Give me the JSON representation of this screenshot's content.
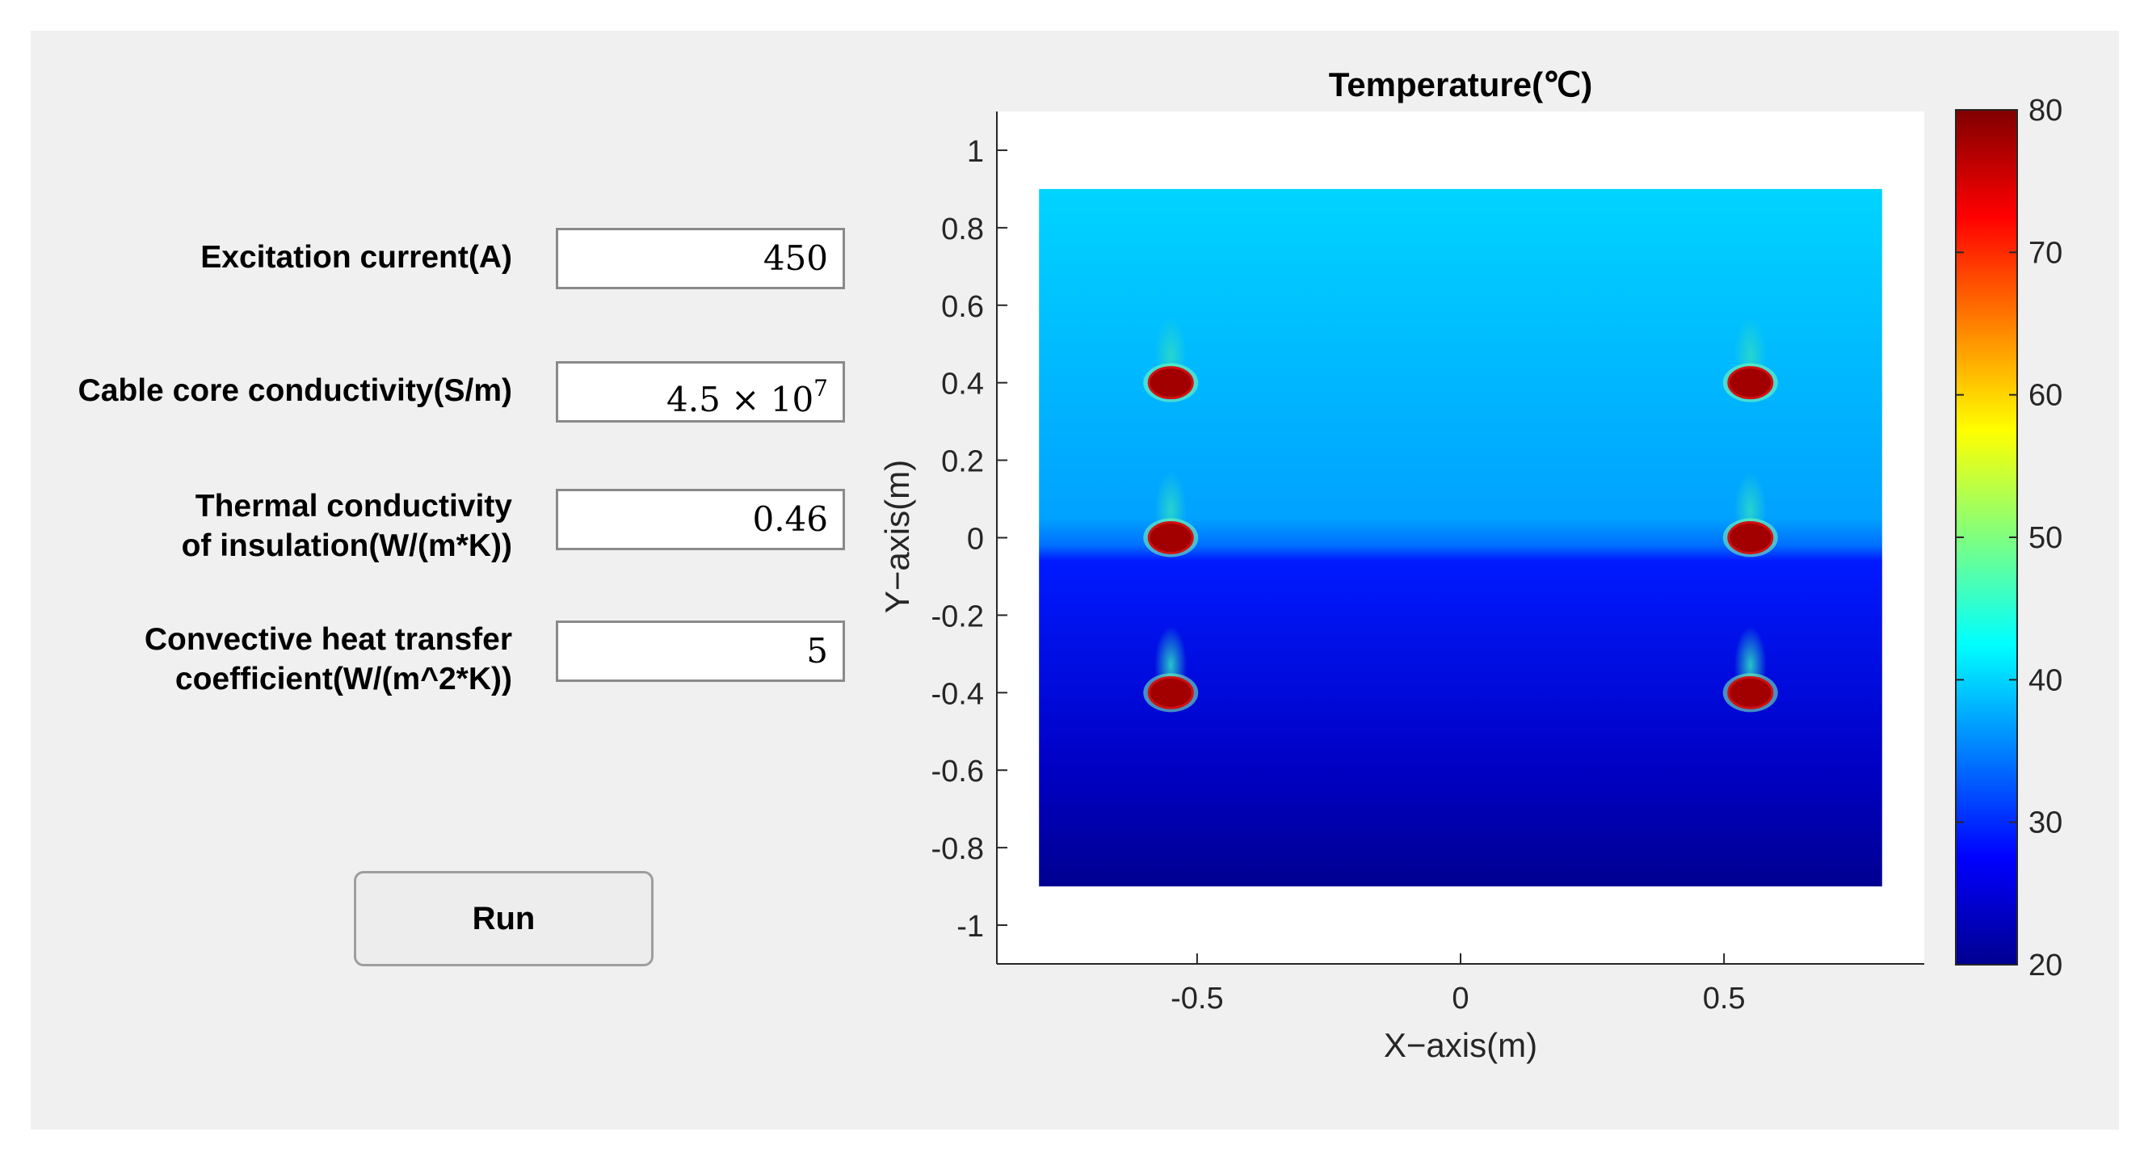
{
  "params": [
    {
      "label": [
        "Excitation current(A)"
      ],
      "value": "450"
    },
    {
      "label": [
        "Cable core conductivity(S/m)"
      ],
      "value_mantissa": "4.5 × 10",
      "value_exponent": "7"
    },
    {
      "label": [
        "Thermal conductivity",
        "of insulation(W/(m*K))"
      ],
      "value": "0.46"
    },
    {
      "label": [
        "Convective heat transfer",
        "coefficient(W/(m^2*K))"
      ],
      "value": "5"
    }
  ],
  "run_label": "Run",
  "chart_data": {
    "type": "heatmap",
    "title": "Temperature(℃)",
    "xlabel": "X−axis(m)",
    "ylabel": "Y−axis(m)",
    "xlim": [
      -0.88,
      0.88
    ],
    "ylim": [
      -1.1,
      1.1
    ],
    "domain": {
      "x": [
        -0.8,
        0.8
      ],
      "y": [
        -0.9,
        0.9
      ]
    },
    "xticks": [
      -0.5,
      0,
      0.5
    ],
    "xtick_labels": [
      "-0.5",
      "0",
      "0.5"
    ],
    "yticks": [
      1,
      0.8,
      0.6,
      0.4,
      0.2,
      0,
      -0.2,
      -0.4,
      -0.6,
      -0.8,
      -1
    ],
    "ytick_labels": [
      "1",
      "0.8",
      "0.6",
      "0.4",
      "0.2",
      "0",
      "-0.2",
      "-0.4",
      "-0.6",
      "-0.8",
      "-1"
    ],
    "colorbar": {
      "range": [
        20,
        80
      ],
      "ticks": [
        20,
        30,
        40,
        50,
        60,
        70,
        80
      ],
      "tick_labels": [
        "20",
        "30",
        "40",
        "50",
        "60",
        "70",
        "80"
      ],
      "colormap": "jet"
    },
    "temperature_profile": [
      {
        "y": 0.9,
        "t": 40
      },
      {
        "y": 0.05,
        "t": 37
      },
      {
        "y": -0.02,
        "t": 34
      },
      {
        "y": -0.06,
        "t": 29
      },
      {
        "y": -0.6,
        "t": 24
      },
      {
        "y": -0.9,
        "t": 21
      }
    ],
    "cables": [
      {
        "x": -0.55,
        "y": 0.4,
        "t": 78
      },
      {
        "x": 0.55,
        "y": 0.4,
        "t": 78
      },
      {
        "x": -0.55,
        "y": 0,
        "t": 78
      },
      {
        "x": 0.55,
        "y": 0,
        "t": 78
      },
      {
        "x": -0.55,
        "y": -0.4,
        "t": 78
      },
      {
        "x": 0.55,
        "y": -0.4,
        "t": 78
      }
    ],
    "grid": false
  }
}
